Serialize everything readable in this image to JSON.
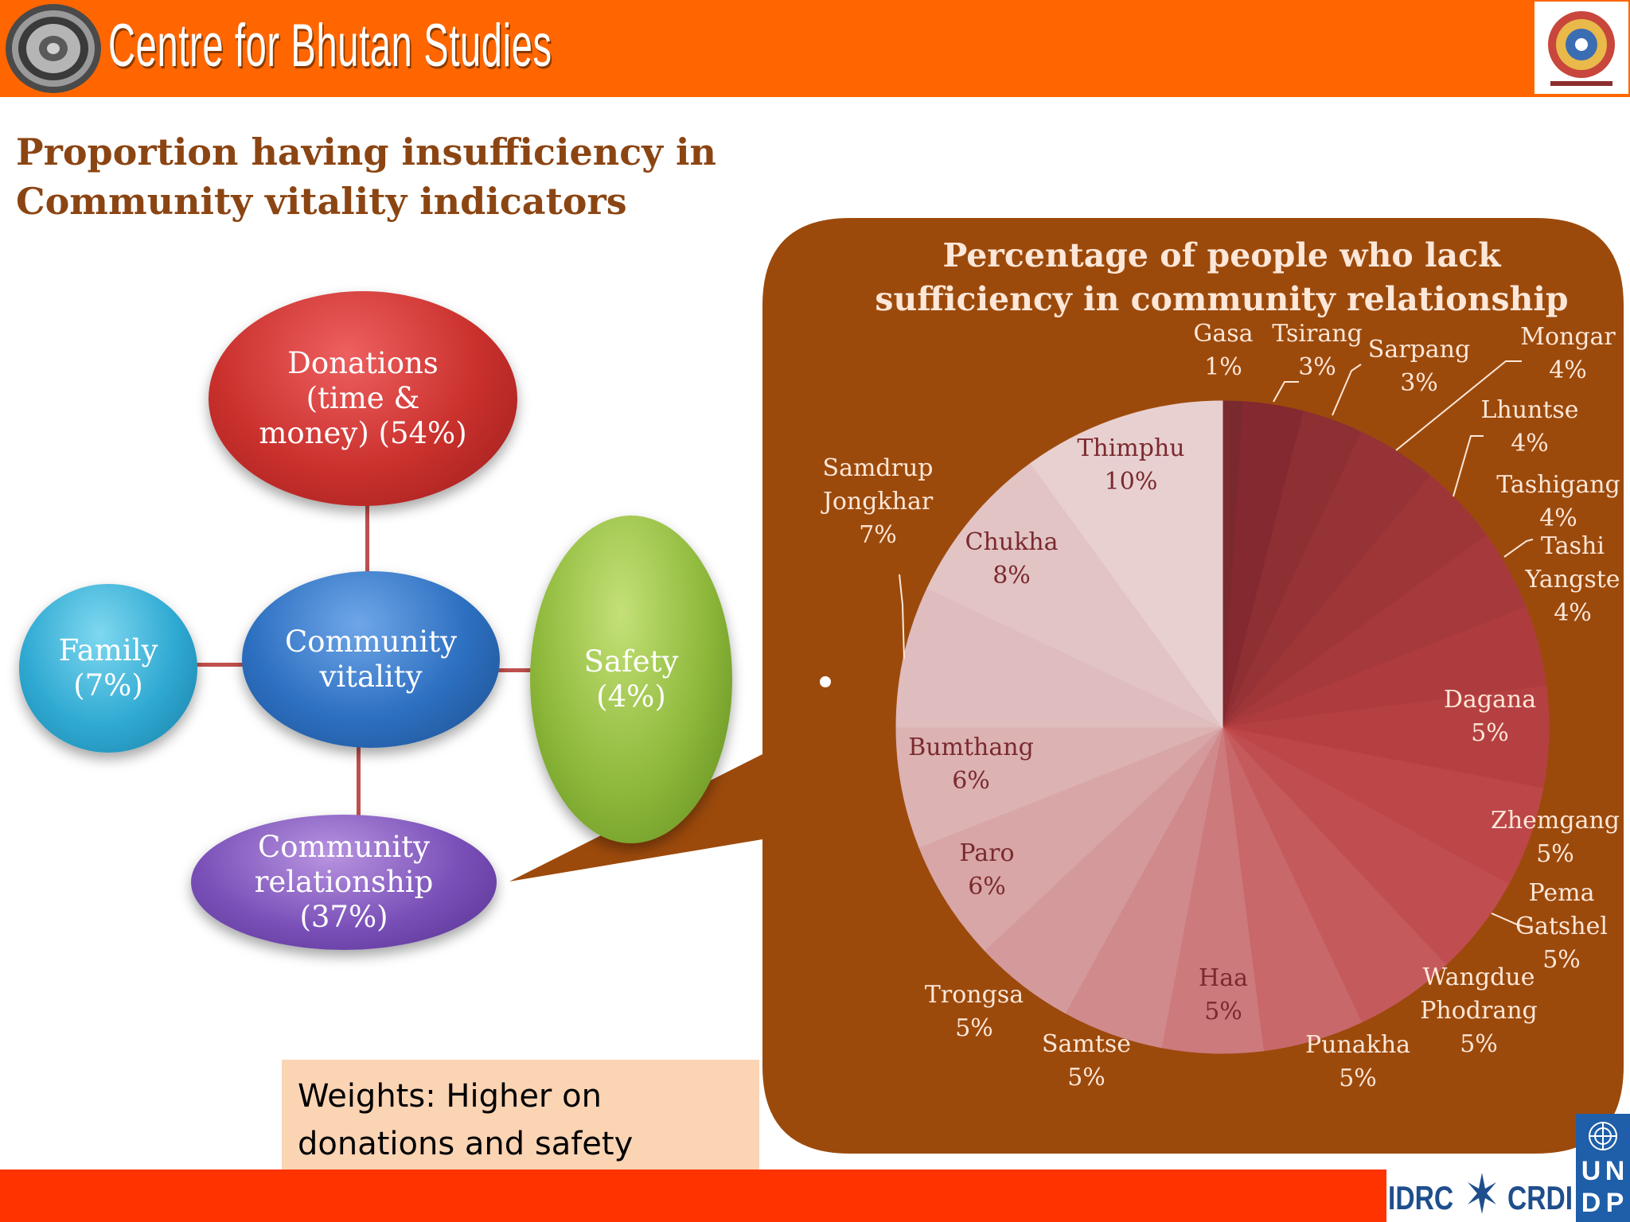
{
  "header": {
    "org_name": "Centre for Bhutan Studies",
    "background_color": "#ff6600"
  },
  "slide": {
    "title_line1": "Proportion having insufficiency in",
    "title_line2": "Community vitality indicators"
  },
  "diagram": {
    "donations": {
      "line1": "Donations",
      "line2": "(time &",
      "line3": "money) (54%)"
    },
    "community_vitality": {
      "line1": "Community",
      "line2": "vitality"
    },
    "family": {
      "line1": "Family",
      "line2": "(7%)"
    },
    "safety": {
      "line1": "Safety",
      "line2": "(4%)"
    },
    "community_relationship": {
      "line1": "Community",
      "line2": "relationship",
      "line3": "(37%)"
    }
  },
  "weights": {
    "line1": "Weights:  Higher on",
    "line2": "donations and safety"
  },
  "footer": {
    "idrc": "IDRC",
    "crdi": "CRDI",
    "undp": [
      "U",
      "N",
      "D",
      "P"
    ]
  },
  "chart_data": {
    "type": "pie",
    "title_line1": "Percentage of people who lack",
    "title_line2": "sufficiency in community relationship",
    "start_angle": "12 o'clock",
    "direction": "clockwise",
    "slices": [
      {
        "label": "Gasa",
        "value": 1,
        "value_label": "1%",
        "color": "#7a2a2e"
      },
      {
        "label": "Tsirang",
        "value": 3,
        "value_label": "3%",
        "color": "#83292f"
      },
      {
        "label": "Sarpang",
        "value": 3,
        "value_label": "3%",
        "color": "#8e2f34"
      },
      {
        "label": "Mongar",
        "value": 4,
        "value_label": "4%",
        "color": "#963336"
      },
      {
        "label": "Lhuntse",
        "value": 4,
        "value_label": "4%",
        "color": "#9e3638"
      },
      {
        "label": "Tashigang",
        "value": 4,
        "value_label": "4%",
        "color": "#a6393b"
      },
      {
        "label": "Tashi Yangste",
        "value": 4,
        "value_label": "4%",
        "color": "#ae3c3e"
      },
      {
        "label": "Dagana",
        "value": 5,
        "value_label": "5%",
        "color": "#b54042"
      },
      {
        "label": "Zhemgang",
        "value": 5,
        "value_label": "5%",
        "color": "#bc4648"
      },
      {
        "label": "Pema Gatshel",
        "value": 5,
        "value_label": "5%",
        "color": "#c04e50"
      },
      {
        "label": "Wangdue Phodrang",
        "value": 5,
        "value_label": "5%",
        "color": "#c45a5c"
      },
      {
        "label": "Punakha",
        "value": 5,
        "value_label": "5%",
        "color": "#c8686a"
      },
      {
        "label": "Haa",
        "value": 5,
        "value_label": "5%",
        "color": "#cc7a7c"
      },
      {
        "label": "Samtse",
        "value": 5,
        "value_label": "5%",
        "color": "#d08a8c"
      },
      {
        "label": "Trongsa",
        "value": 5,
        "value_label": "5%",
        "color": "#d49a9b"
      },
      {
        "label": "Paro",
        "value": 6,
        "value_label": "6%",
        "color": "#d8a6a7"
      },
      {
        "label": "Bumthang",
        "value": 6,
        "value_label": "6%",
        "color": "#dcb2b3"
      },
      {
        "label": "Samdrup Jongkhar",
        "value": 7,
        "value_label": "7%",
        "color": "#dfbcbd"
      },
      {
        "label": "Chukha",
        "value": 8,
        "value_label": "8%",
        "color": "#e2c4c5"
      },
      {
        "label": "Thimphu",
        "value": 10,
        "value_label": "10%",
        "color": "#e8d0d1"
      }
    ]
  }
}
